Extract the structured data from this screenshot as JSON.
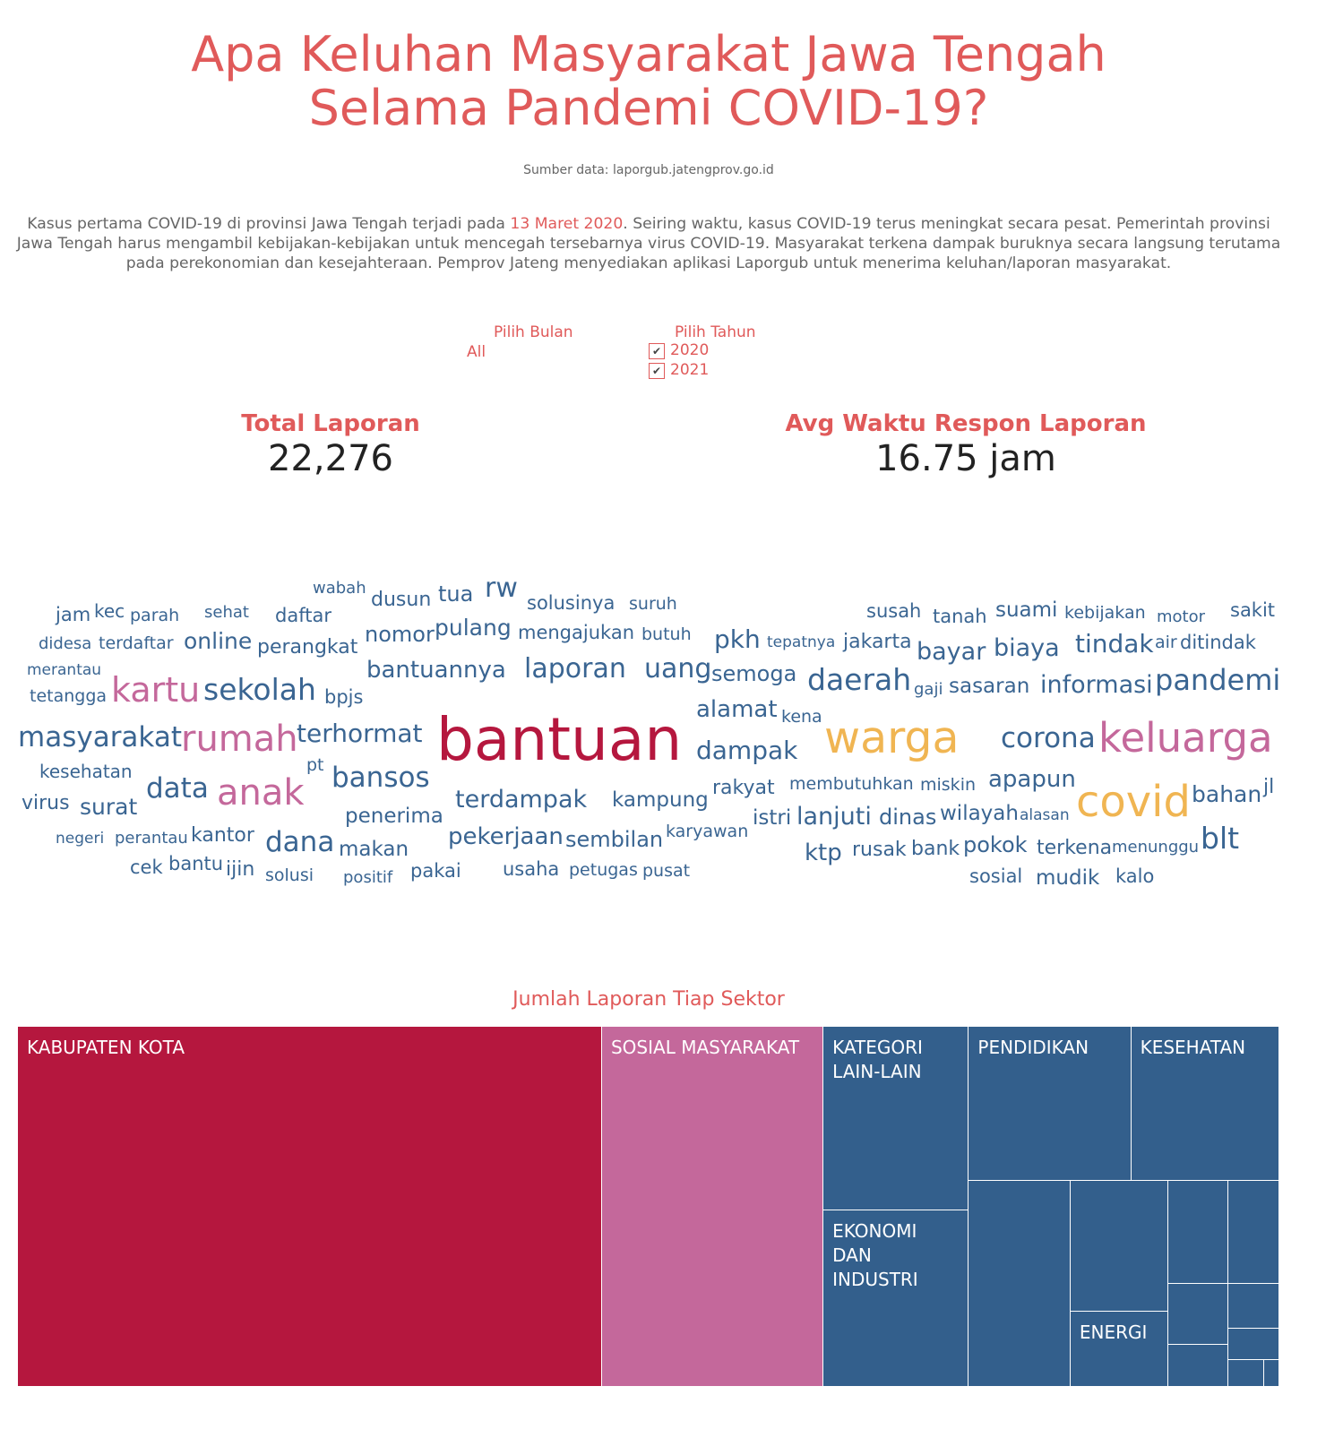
{
  "header": {
    "title_lines": [
      "Apa Keluhan Masyarakat Jawa Tengah",
      "Selama Pandemi COVID-19?"
    ],
    "source": "Sumber data: laporgub.jatengprov.go.id"
  },
  "intro": {
    "parts": [
      "Kasus pertama COVID-19 di provinsi Jawa Tengah terjadi pada ",
      "13 Maret 2020",
      ". Seiring waktu, kasus COVID-19 terus meningkat secara pesat. Pemerintah provinsi Jawa Tengah harus mengambil kebijakan-kebijakan untuk mencegah tersebarnya virus COVID-19. Masyarakat terkena dampak buruknya secara langsung terutama pada perekonomian dan kesejahteraan. Pemprov Jateng menyediakan aplikasi Laporgub untuk menerima keluhan/laporan masyarakat."
    ]
  },
  "filters": {
    "month": {
      "label": "Pilih Bulan",
      "value": "All"
    },
    "year": {
      "label": "Pilih Tahun",
      "options": [
        "2020",
        "2021"
      ]
    }
  },
  "kpis": [
    {
      "label": "Total Laporan",
      "value": "22,276"
    },
    {
      "label": "Avg Waktu Respon Laporan",
      "value": "16.75 jam"
    }
  ],
  "word_cloud": {
    "words": [
      "wabah",
      "dusun",
      "tua",
      "rw",
      "solusinya",
      "suruh",
      "jam",
      "kec",
      "parah",
      "sehat",
      "daftar",
      "didesa",
      "terdaftar",
      "online",
      "perangkat",
      "nomor",
      "pulang",
      "mengajukan",
      "butuh",
      "merantau",
      "bantuannya",
      "laporan",
      "uang",
      "tetangga",
      "kartu",
      "sekolah",
      "bpjs",
      "masyarakat",
      "rumah",
      "terhormat",
      "bantuan",
      "kesehatan",
      "pt",
      "bansos",
      "data",
      "anak",
      "virus",
      "surat",
      "terdampak",
      "kampung",
      "penerima",
      "negeri",
      "perantau",
      "kantor",
      "dana",
      "makan",
      "pekerjaan",
      "sembilan",
      "karyawan",
      "cek",
      "bantu",
      "ijin",
      "solusi",
      "positif",
      "pakai",
      "usaha",
      "petugas",
      "pusat",
      "susah",
      "tanah",
      "suami",
      "kebijakan",
      "motor",
      "sakit",
      "pkh",
      "tepatnya",
      "jakarta",
      "bayar",
      "biaya",
      "tindak",
      "air",
      "ditindak",
      "semoga",
      "daerah",
      "gaji",
      "sasaran",
      "informasi",
      "pandemi",
      "alamat",
      "kena",
      "warga",
      "corona",
      "keluarga",
      "dampak",
      "membutuhkan",
      "miskin",
      "apapun",
      "rakyat",
      "covid",
      "bahan",
      "jl",
      "istri",
      "lanjuti",
      "dinas",
      "wilayah",
      "alasan",
      "blt",
      "ktp",
      "rusak",
      "bank",
      "pokok",
      "terkena",
      "menunggu",
      "sosial",
      "mudik",
      "kalo"
    ]
  },
  "chart_data": {
    "type": "treemap",
    "title": "Jumlah Laporan Tiap Sektor",
    "categories": [
      "KABUPATEN KOTA",
      "SOSIAL MASYARAKAT",
      "KATEGORI LAIN-LAIN",
      "EKONOMI DAN INDUSTRI",
      "PENDIDIKAN",
      "KESEHATAN",
      null,
      null,
      "ENERGI",
      null,
      null,
      null,
      null,
      null,
      null,
      null,
      null
    ],
    "values": [
      10316,
      3910,
      1312,
      1256,
      1229,
      1122,
      1026,
      626,
      363,
      300,
      257,
      177,
      124,
      113,
      79,
      48,
      20
    ],
    "colors": [
      "#b5173e",
      "#c4689b",
      "#335f8c",
      "#335f8c",
      "#335f8c",
      "#335f8c",
      "#335f8c",
      "#335f8c",
      "#335f8c",
      "#335f8c",
      "#335f8c",
      "#335f8c",
      "#335f8c",
      "#335f8c",
      "#335f8c",
      "#335f8c",
      "#335f8c"
    ]
  }
}
